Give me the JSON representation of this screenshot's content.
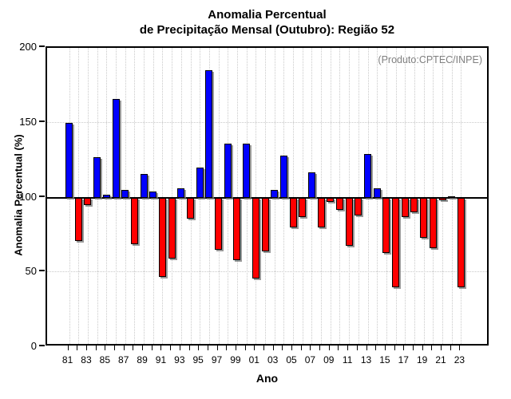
{
  "title": {
    "line1": "Anomalia Percentual",
    "line2": "de Precipitação Mensal (Outubro): Região 52"
  },
  "annotation": "(Produto:CPTEC/INPE)",
  "axes": {
    "y_label": "Anomalia Percentual (%)",
    "x_label": "Ano",
    "y_ticks": [
      "0",
      "50",
      "100",
      "150",
      "200"
    ],
    "x_tick_labels": [
      "81",
      "83",
      "85",
      "87",
      "89",
      "91",
      "93",
      "95",
      "97",
      "99",
      "01",
      "03",
      "05",
      "07",
      "09",
      "11",
      "13",
      "15",
      "17",
      "19",
      "21",
      "23"
    ]
  },
  "colors": {
    "above_baseline": "#0000ff",
    "below_baseline": "#ff0000",
    "baseline": "#000000",
    "grid": "#c9c9c9",
    "annotation_text": "#808080"
  },
  "chart_data": {
    "type": "bar",
    "title": "Anomalia Percentual de Precipitação Mensal (Outubro): Região 52",
    "xlabel": "Ano",
    "ylabel": "Anomalia Percentual (%)",
    "ylim": [
      0,
      200
    ],
    "baseline": 100,
    "grid_h_values": [
      50,
      100,
      150
    ],
    "grid_vertical_every_bar": true,
    "legend": null,
    "categories": [
      "81",
      "82",
      "83",
      "84",
      "85",
      "86",
      "87",
      "88",
      "89",
      "90",
      "91",
      "92",
      "93",
      "94",
      "95",
      "96",
      "97",
      "98",
      "99",
      "00",
      "01",
      "02",
      "03",
      "04",
      "05",
      "06",
      "07",
      "08",
      "09",
      "10",
      "11",
      "12",
      "13",
      "14",
      "15",
      "16",
      "17",
      "18",
      "19",
      "20",
      "21",
      "22",
      "23"
    ],
    "values": [
      150,
      71,
      95,
      127,
      102,
      166,
      105,
      69,
      116,
      104,
      47,
      59,
      106,
      86,
      120,
      185,
      65,
      136,
      58,
      136,
      46,
      64,
      105,
      128,
      80,
      87,
      117,
      80,
      97,
      92,
      68,
      88,
      129,
      106,
      63,
      40,
      87,
      90,
      73,
      66,
      98,
      101,
      40
    ]
  }
}
